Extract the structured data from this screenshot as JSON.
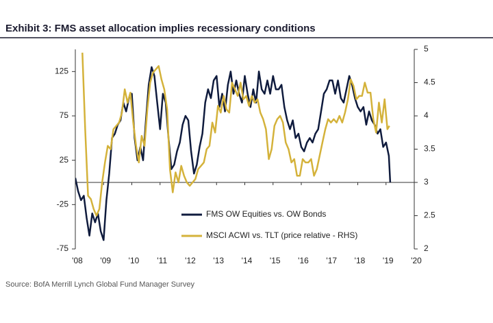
{
  "chart_data": {
    "type": "line",
    "title": "Exhibit 3: FMS asset allocation implies recessionary conditions",
    "source": "Source:  BofA Merrill Lynch Global Fund Manager Survey",
    "xlim": [
      2008,
      2020
    ],
    "xticks": [
      {
        "value": 2008,
        "label": "'08"
      },
      {
        "value": 2009,
        "label": "'09"
      },
      {
        "value": 2010,
        "label": "'10"
      },
      {
        "value": 2011,
        "label": "'11"
      },
      {
        "value": 2012,
        "label": "'12"
      },
      {
        "value": 2013,
        "label": "'13"
      },
      {
        "value": 2014,
        "label": "'14"
      },
      {
        "value": 2015,
        "label": "'15"
      },
      {
        "value": 2016,
        "label": "'16"
      },
      {
        "value": 2017,
        "label": "'17"
      },
      {
        "value": 2018,
        "label": "'18"
      },
      {
        "value": 2019,
        "label": "'19"
      },
      {
        "value": 2020,
        "label": "'20"
      }
    ],
    "ylim": [
      -75,
      150
    ],
    "yticks": [
      -75,
      -25,
      25,
      75,
      125
    ],
    "y2lim": [
      2,
      5
    ],
    "y2ticks": [
      2,
      2.5,
      3,
      3.5,
      4,
      4.5,
      5
    ],
    "legend": "lower center",
    "series": [
      {
        "name": "FMS OW Equities vs. OW Bonds",
        "color": "#0f1b3d",
        "x": [
          2008.0,
          2008.1,
          2008.2,
          2008.3,
          2008.4,
          2008.5,
          2008.6,
          2008.7,
          2008.8,
          2008.9,
          2009.0,
          2009.1,
          2009.2,
          2009.3,
          2009.4,
          2009.5,
          2009.6,
          2009.7,
          2009.8,
          2009.9,
          2010.0,
          2010.1,
          2010.2,
          2010.3,
          2010.4,
          2010.5,
          2010.6,
          2010.7,
          2010.8,
          2010.9,
          2011.0,
          2011.1,
          2011.2,
          2011.3,
          2011.4,
          2011.5,
          2011.6,
          2011.7,
          2011.8,
          2011.9,
          2012.0,
          2012.1,
          2012.2,
          2012.3,
          2012.4,
          2012.5,
          2012.6,
          2012.7,
          2012.8,
          2012.9,
          2013.0,
          2013.1,
          2013.2,
          2013.3,
          2013.4,
          2013.5,
          2013.6,
          2013.7,
          2013.8,
          2013.9,
          2014.0,
          2014.1,
          2014.2,
          2014.3,
          2014.4,
          2014.5,
          2014.6,
          2014.7,
          2014.8,
          2014.9,
          2015.0,
          2015.1,
          2015.2,
          2015.3,
          2015.4,
          2015.5,
          2015.6,
          2015.7,
          2015.8,
          2015.9,
          2016.0,
          2016.1,
          2016.2,
          2016.3,
          2016.4,
          2016.5,
          2016.6,
          2016.7,
          2016.8,
          2016.9,
          2017.0,
          2017.1,
          2017.2,
          2017.3,
          2017.4,
          2017.5,
          2017.6,
          2017.7,
          2017.8,
          2017.9,
          2018.0,
          2018.1,
          2018.2,
          2018.3,
          2018.4,
          2018.5,
          2018.6,
          2018.7,
          2018.8,
          2018.9,
          2019.0,
          2019.1,
          2019.15
        ],
        "values": [
          5,
          -10,
          -20,
          -15,
          -40,
          -60,
          -35,
          -45,
          -35,
          -55,
          -65,
          -20,
          10,
          50,
          55,
          65,
          70,
          90,
          80,
          95,
          100,
          50,
          25,
          40,
          25,
          70,
          110,
          130,
          120,
          90,
          60,
          100,
          90,
          50,
          15,
          20,
          35,
          45,
          65,
          75,
          70,
          35,
          10,
          20,
          40,
          55,
          90,
          105,
          95,
          115,
          120,
          85,
          100,
          80,
          110,
          125,
          100,
          115,
          100,
          90,
          120,
          100,
          85,
          105,
          90,
          125,
          105,
          100,
          115,
          100,
          120,
          105,
          105,
          110,
          85,
          70,
          60,
          70,
          50,
          55,
          40,
          35,
          45,
          50,
          45,
          55,
          60,
          80,
          100,
          105,
          115,
          115,
          100,
          115,
          95,
          90,
          105,
          120,
          110,
          95,
          85,
          80,
          85,
          65,
          80,
          70,
          65,
          55,
          60,
          40,
          45,
          30,
          0
        ]
      },
      {
        "name": "MSCI ACWI vs. TLT (price relative - RHS)",
        "color": "#d4b23a",
        "axis": "y2",
        "x": [
          2008.25,
          2008.35,
          2008.45,
          2008.55,
          2008.65,
          2008.75,
          2008.85,
          2008.95,
          2009.05,
          2009.15,
          2009.25,
          2009.35,
          2009.45,
          2009.55,
          2009.65,
          2009.75,
          2009.85,
          2009.95,
          2010.05,
          2010.15,
          2010.25,
          2010.35,
          2010.45,
          2010.55,
          2010.65,
          2010.75,
          2010.85,
          2010.95,
          2011.05,
          2011.15,
          2011.25,
          2011.35,
          2011.45,
          2011.55,
          2011.65,
          2011.75,
          2011.85,
          2011.95,
          2012.05,
          2012.15,
          2012.25,
          2012.35,
          2012.45,
          2012.55,
          2012.65,
          2012.75,
          2012.85,
          2012.95,
          2013.05,
          2013.15,
          2013.25,
          2013.35,
          2013.45,
          2013.55,
          2013.65,
          2013.75,
          2013.85,
          2013.95,
          2014.05,
          2014.15,
          2014.25,
          2014.35,
          2014.45,
          2014.55,
          2014.65,
          2014.75,
          2014.85,
          2014.95,
          2015.05,
          2015.15,
          2015.25,
          2015.35,
          2015.45,
          2015.55,
          2015.65,
          2015.75,
          2015.85,
          2015.95,
          2016.05,
          2016.15,
          2016.25,
          2016.35,
          2016.45,
          2016.55,
          2016.65,
          2016.75,
          2016.85,
          2016.95,
          2017.05,
          2017.15,
          2017.25,
          2017.35,
          2017.45,
          2017.55,
          2017.65,
          2017.75,
          2017.85,
          2017.95,
          2018.05,
          2018.15,
          2018.25,
          2018.35,
          2018.45,
          2018.55,
          2018.65,
          2018.75,
          2018.85,
          2018.95,
          2019.05,
          2019.12
        ],
        "values": [
          4.95,
          3.8,
          2.8,
          2.75,
          2.6,
          2.5,
          2.6,
          3.0,
          3.3,
          3.55,
          3.5,
          3.8,
          3.85,
          3.9,
          4.05,
          4.4,
          4.2,
          4.35,
          3.9,
          3.55,
          3.3,
          3.7,
          3.55,
          4.1,
          4.5,
          4.65,
          4.7,
          4.75,
          4.55,
          4.4,
          4.1,
          3.2,
          2.85,
          3.15,
          3.0,
          3.25,
          3.1,
          3.0,
          2.95,
          3.0,
          3.05,
          3.2,
          3.25,
          3.3,
          3.5,
          3.55,
          3.9,
          3.75,
          4.15,
          4.05,
          4.3,
          4.1,
          4.05,
          4.5,
          4.4,
          4.3,
          4.5,
          4.25,
          4.3,
          4.15,
          4.3,
          4.2,
          4.25,
          4.05,
          3.95,
          3.8,
          3.35,
          3.5,
          3.85,
          3.95,
          4.0,
          3.9,
          3.6,
          3.5,
          3.3,
          3.35,
          3.1,
          3.1,
          3.35,
          3.3,
          3.3,
          3.35,
          3.1,
          3.2,
          3.4,
          3.6,
          3.8,
          3.95,
          3.9,
          3.95,
          3.9,
          4.0,
          3.9,
          4.05,
          4.25,
          4.55,
          4.45,
          4.25,
          4.3,
          4.3,
          4.5,
          4.35,
          4.35,
          3.95,
          3.75,
          4.2,
          3.9,
          4.25,
          3.8,
          3.85
        ]
      }
    ]
  }
}
